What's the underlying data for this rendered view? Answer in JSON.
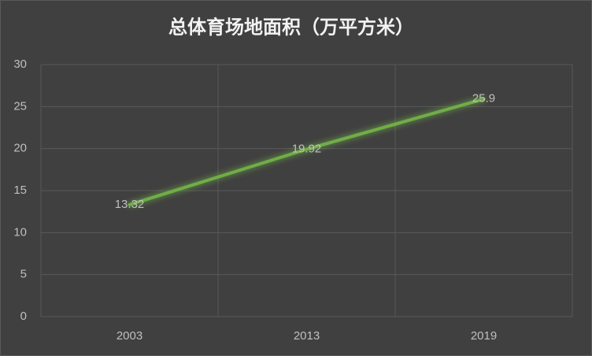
{
  "chart_data": {
    "type": "line",
    "title": "总体育场地面积（万平方米）",
    "categories": [
      "2003",
      "2013",
      "2019"
    ],
    "series": [
      {
        "name": "总体育场地面积",
        "color": "#70ad47",
        "values": [
          13.32,
          19.92,
          25.9
        ]
      }
    ],
    "ylim": [
      0,
      30
    ],
    "yticks": [
      0,
      5,
      10,
      15,
      20,
      25,
      30
    ],
    "grid": true
  }
}
